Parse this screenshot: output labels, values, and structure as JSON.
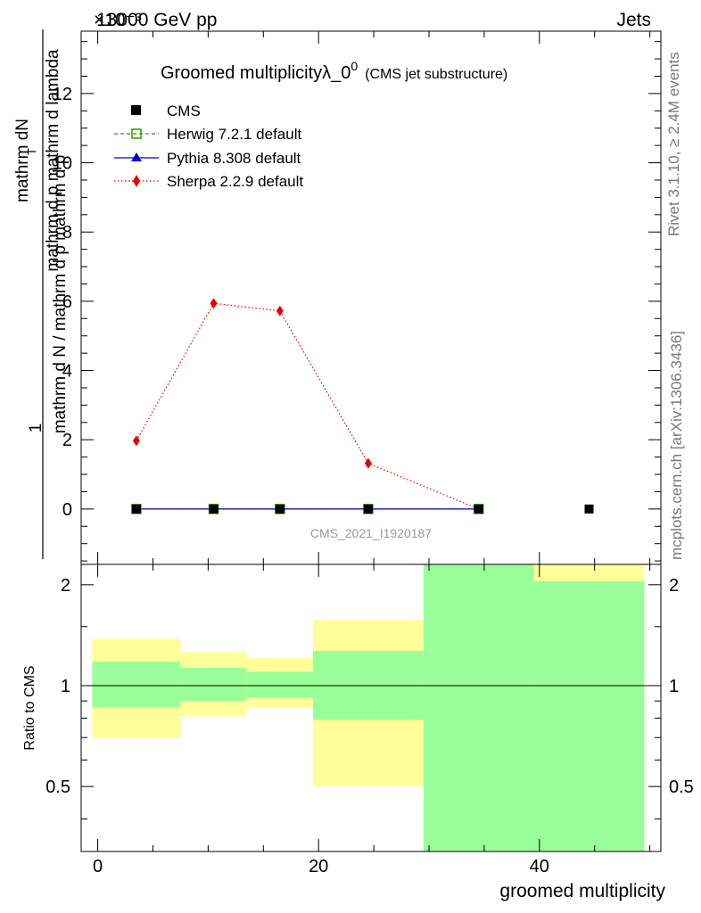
{
  "header": {
    "left": "13000 GeV pp",
    "right": "Jets",
    "exponent": "×10⁻³"
  },
  "side": {
    "rivet": "Rivet 3.1.10, ≥ 2.4M events",
    "mcplots": "mcplots.cern.ch [arXiv:1306.3436]"
  },
  "watermark": "CMS_2021_I1920187",
  "chart_data": {
    "type": "scatter",
    "title": "Groomed multiplicityλ_0",
    "title_superscript": "0",
    "subtitle": "(CMS jet substructure)",
    "xlabel": "groomed multiplicity",
    "ylabel_top": "mathrm dN",
    "ylabel_top_sub": "T",
    "ylabel_bottom_line1": "mathrm d p  mathrm d lambda",
    "ylabel_bottom_line2": "mathrm d N / mathrm d p  mathrm d p",
    "ylabel_prefix": "1",
    "ratio_ylabel": "Ratio to CMS",
    "y_exponent": -3,
    "xlim": [
      -1.5,
      51
    ],
    "ylim": [
      -1.6,
      13.8
    ],
    "x_ticks": [
      0,
      20,
      40
    ],
    "y_ticks": [
      0,
      2,
      4,
      6,
      8,
      10,
      12
    ],
    "ratio_ylim": [
      0.32,
      2.3
    ],
    "ratio_ticks": [
      0.5,
      1,
      2
    ],
    "ratio_log": true,
    "bin_edges": [
      -0.5,
      7.5,
      13.5,
      19.5,
      29.5,
      39.5,
      49.5
    ],
    "legend_position": "top-left",
    "series": [
      {
        "name": "CMS",
        "color": "#000000",
        "marker": "square",
        "x": [
          3.5,
          10.5,
          16.5,
          24.5,
          34.5,
          44.5
        ],
        "y": [
          0,
          0,
          0,
          0,
          0,
          0
        ]
      },
      {
        "name": "Herwig 7.2.1 default",
        "color": "#339900",
        "marker": "open-square",
        "line": "dashed",
        "x": [
          3.5,
          10.5,
          16.5,
          24.5,
          34.5
        ],
        "y": [
          0,
          0,
          0,
          0,
          0
        ]
      },
      {
        "name": "Pythia 8.308 default",
        "color": "#0000cc",
        "marker": "triangle",
        "line": "solid",
        "x": [
          3.5,
          10.5,
          16.5,
          24.5,
          34.5
        ],
        "y": [
          0,
          0,
          0,
          0,
          0
        ]
      },
      {
        "name": "Sherpa 2.2.9 default",
        "color": "#e60000",
        "marker": "diamond",
        "line": "dotted",
        "x": [
          3.5,
          10.5,
          16.5,
          24.5,
          34.5
        ],
        "y": [
          1.97,
          5.94,
          5.72,
          1.32,
          0.0
        ]
      }
    ],
    "ratio_bands": {
      "inner_color": "#99ff99",
      "outer_color": "#ffff99",
      "inner": [
        [
          0.86,
          1.18
        ],
        [
          0.9,
          1.13
        ],
        [
          0.92,
          1.1
        ],
        [
          0.79,
          1.27
        ],
        [
          0.3,
          2.4
        ],
        [
          0.3,
          2.05
        ]
      ],
      "outer": [
        [
          0.7,
          1.38
        ],
        [
          0.81,
          1.26
        ],
        [
          0.86,
          1.21
        ],
        [
          0.5,
          1.57
        ],
        [
          0.3,
          2.4
        ],
        [
          0.3,
          2.4
        ]
      ]
    }
  }
}
